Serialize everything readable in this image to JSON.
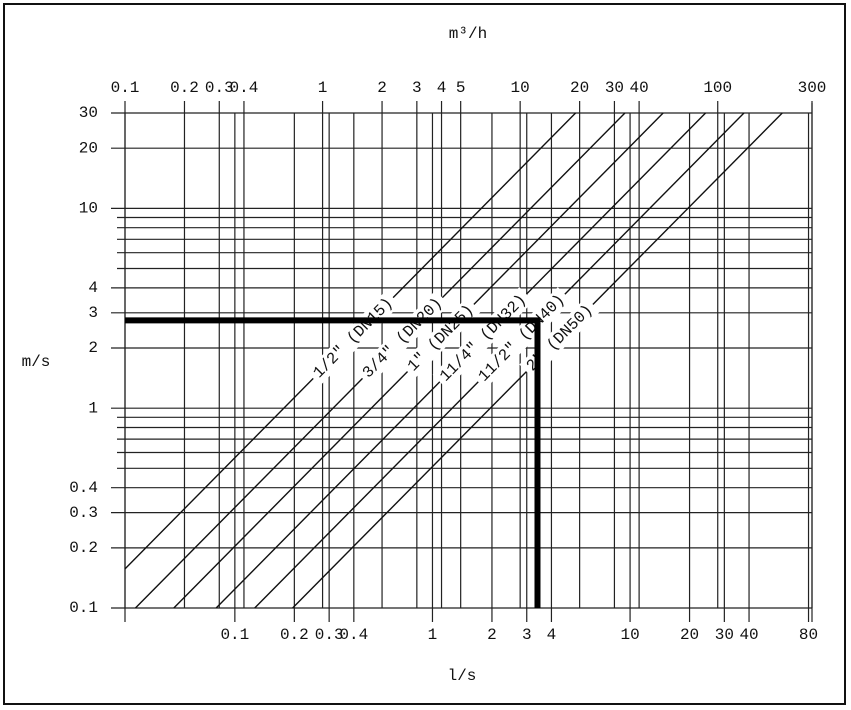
{
  "chart_data": {
    "type": "line",
    "x_label": "l/s",
    "x2_label": "m³/h",
    "y_label": "m/s",
    "xscale": "log",
    "yscale": "log",
    "grid": true,
    "xlim": [
      0.0278,
      83.3
    ],
    "x2lim": [
      0.1,
      300
    ],
    "ylim": [
      0.1,
      30
    ],
    "xticks": [
      0.1,
      0.2,
      0.3,
      0.4,
      1,
      2,
      3,
      4,
      10,
      20,
      30,
      40,
      80
    ],
    "x2ticks": [
      0.1,
      0.2,
      0.3,
      0.4,
      1,
      2,
      3,
      4,
      5,
      10,
      20,
      30,
      40,
      100,
      300
    ],
    "yticks": [
      0.1,
      0.2,
      0.3,
      0.4,
      1,
      2,
      3,
      4,
      10,
      20,
      30
    ],
    "yminor": [
      0.5,
      0.6,
      0.7,
      0.8,
      0.9,
      5,
      6,
      7,
      8,
      9
    ],
    "series": [
      {
        "name": "1/2\" (DN15)",
        "color": "#111",
        "x": [
          0.0278,
          5.3
        ],
        "values": [
          0.157,
          30
        ]
      },
      {
        "name": "3/4\" (DN20)",
        "color": "#111",
        "x": [
          0.0314,
          9.42
        ],
        "values": [
          0.1,
          30
        ]
      },
      {
        "name": "1\" (DN25)",
        "color": "#111",
        "x": [
          0.0491,
          14.7
        ],
        "values": [
          0.1,
          30
        ]
      },
      {
        "name": "11/4\" (DN32)",
        "color": "#111",
        "x": [
          0.0804,
          24.1
        ],
        "values": [
          0.1,
          30
        ]
      },
      {
        "name": "11/2\" (DN40)",
        "color": "#111",
        "x": [
          0.126,
          37.7
        ],
        "values": [
          0.1,
          30
        ]
      },
      {
        "name": "2\" (DN50)",
        "color": "#111",
        "x": [
          0.196,
          58.9
        ],
        "values": [
          0.1,
          30
        ]
      }
    ],
    "reading": {
      "color": "#000",
      "x": [
        0.0278,
        3.4,
        3.4
      ],
      "values": [
        2.75,
        2.75,
        0.1
      ]
    }
  }
}
